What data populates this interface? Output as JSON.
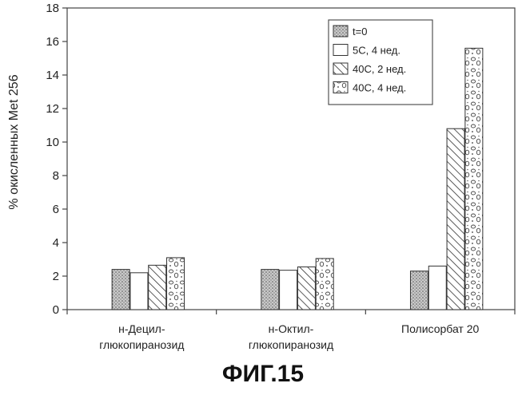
{
  "chart_data": {
    "type": "bar",
    "ylabel": "% окисленных Met 256",
    "xlabel": "",
    "ylim": [
      0,
      18
    ],
    "yticks": [
      0,
      2,
      4,
      6,
      8,
      10,
      12,
      14,
      16,
      18
    ],
    "categories": [
      [
        "н-Децил-",
        "глюкопиранозид"
      ],
      [
        "н-Октил-",
        "глюкопиранозид"
      ],
      [
        "Полисорбат 20"
      ]
    ],
    "series": [
      {
        "name": "t=0",
        "pattern": "dots",
        "values": [
          2.4,
          2.4,
          2.3
        ]
      },
      {
        "name": "5C, 4 нед.",
        "pattern": "white",
        "values": [
          2.2,
          2.35,
          2.6
        ]
      },
      {
        "name": "40C, 2 нед.",
        "pattern": "hatch",
        "values": [
          2.65,
          2.55,
          10.8
        ]
      },
      {
        "name": "40C, 4 нед.",
        "pattern": "bubbles",
        "values": [
          3.1,
          3.05,
          15.6
        ]
      }
    ],
    "legend_position": "top-right",
    "grid": false
  },
  "figure_caption": "ФИГ.15"
}
